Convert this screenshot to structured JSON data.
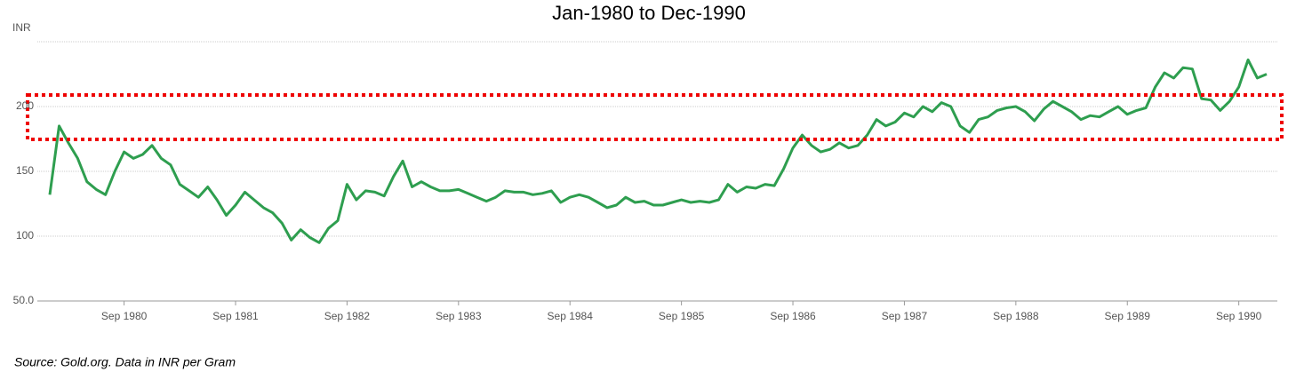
{
  "chart_data": {
    "type": "line",
    "title": "Jan-1980 to Dec-1990",
    "y_label": "INR",
    "source": "Source: Gold.org. Data in INR per Gram",
    "x": [
      "1980-01",
      "1980-02",
      "1980-03",
      "1980-04",
      "1980-05",
      "1980-06",
      "1980-07",
      "1980-08",
      "1980-09",
      "1980-10",
      "1980-11",
      "1980-12",
      "1981-01",
      "1981-02",
      "1981-03",
      "1981-04",
      "1981-05",
      "1981-06",
      "1981-07",
      "1981-08",
      "1981-09",
      "1981-10",
      "1981-11",
      "1981-12",
      "1982-01",
      "1982-02",
      "1982-03",
      "1982-04",
      "1982-05",
      "1982-06",
      "1982-07",
      "1982-08",
      "1982-09",
      "1982-10",
      "1982-11",
      "1982-12",
      "1983-01",
      "1983-02",
      "1983-03",
      "1983-04",
      "1983-05",
      "1983-06",
      "1983-07",
      "1983-08",
      "1983-09",
      "1983-10",
      "1983-11",
      "1983-12",
      "1984-01",
      "1984-02",
      "1984-03",
      "1984-04",
      "1984-05",
      "1984-06",
      "1984-07",
      "1984-08",
      "1984-09",
      "1984-10",
      "1984-11",
      "1984-12",
      "1985-01",
      "1985-02",
      "1985-03",
      "1985-04",
      "1985-05",
      "1985-06",
      "1985-07",
      "1985-08",
      "1985-09",
      "1985-10",
      "1985-11",
      "1985-12",
      "1986-01",
      "1986-02",
      "1986-03",
      "1986-04",
      "1986-05",
      "1986-06",
      "1986-07",
      "1986-08",
      "1986-09",
      "1986-10",
      "1986-11",
      "1986-12",
      "1987-01",
      "1987-02",
      "1987-03",
      "1987-04",
      "1987-05",
      "1987-06",
      "1987-07",
      "1987-08",
      "1987-09",
      "1987-10",
      "1987-11",
      "1987-12",
      "1988-01",
      "1988-02",
      "1988-03",
      "1988-04",
      "1988-05",
      "1988-06",
      "1988-07",
      "1988-08",
      "1988-09",
      "1988-10",
      "1988-11",
      "1988-12",
      "1989-01",
      "1989-02",
      "1989-03",
      "1989-04",
      "1989-05",
      "1989-06",
      "1989-07",
      "1989-08",
      "1989-09",
      "1989-10",
      "1989-11",
      "1989-12",
      "1990-01",
      "1990-02",
      "1990-03",
      "1990-04",
      "1990-05",
      "1990-06",
      "1990-07",
      "1990-08",
      "1990-09",
      "1990-10",
      "1990-11",
      "1990-12"
    ],
    "series": [
      {
        "color": "#2e9e4f",
        "values": [
          132,
          185,
          172,
          160,
          142,
          136,
          132,
          150,
          165,
          160,
          163,
          170,
          160,
          155,
          140,
          135,
          130,
          138,
          128,
          116,
          124,
          134,
          128,
          122,
          118,
          110,
          97,
          105,
          99,
          95,
          106,
          112,
          140,
          128,
          135,
          134,
          131,
          146,
          158,
          138,
          142,
          138,
          135,
          135,
          136,
          133,
          130,
          127,
          130,
          135,
          134,
          134,
          132,
          133,
          135,
          126,
          130,
          132,
          130,
          126,
          122,
          124,
          130,
          126,
          127,
          124,
          124,
          126,
          128,
          126,
          127,
          126,
          128,
          140,
          134,
          138,
          137,
          140,
          139,
          152,
          168,
          178,
          170,
          165,
          167,
          172,
          168,
          170,
          178,
          190,
          185,
          188,
          195,
          192,
          200,
          196,
          203,
          200,
          185,
          180,
          190,
          192,
          197,
          199,
          200,
          196,
          189,
          198,
          204,
          200,
          196,
          190,
          193,
          192,
          196,
          200,
          194,
          197,
          199,
          215,
          226,
          222,
          230,
          229,
          206,
          205,
          197,
          204,
          215,
          236,
          222,
          225
        ]
      }
    ],
    "xlim": [
      "1980-01",
      "1990-12"
    ],
    "xticks": [
      {
        "value": "1980-09",
        "label": "Sep 1980"
      },
      {
        "value": "1981-09",
        "label": "Sep 1981"
      },
      {
        "value": "1982-09",
        "label": "Sep 1982"
      },
      {
        "value": "1983-09",
        "label": "Sep 1983"
      },
      {
        "value": "1984-09",
        "label": "Sep 1984"
      },
      {
        "value": "1985-09",
        "label": "Sep 1985"
      },
      {
        "value": "1986-09",
        "label": "Sep 1986"
      },
      {
        "value": "1987-09",
        "label": "Sep 1987"
      },
      {
        "value": "1988-09",
        "label": "Sep 1988"
      },
      {
        "value": "1989-09",
        "label": "Sep 1989"
      },
      {
        "value": "1990-09",
        "label": "Sep 1990"
      }
    ],
    "ylim": [
      50,
      250
    ],
    "yticks": [
      {
        "value": 50,
        "label": "50.0"
      },
      100,
      150,
      200
    ],
    "grid": true
  }
}
